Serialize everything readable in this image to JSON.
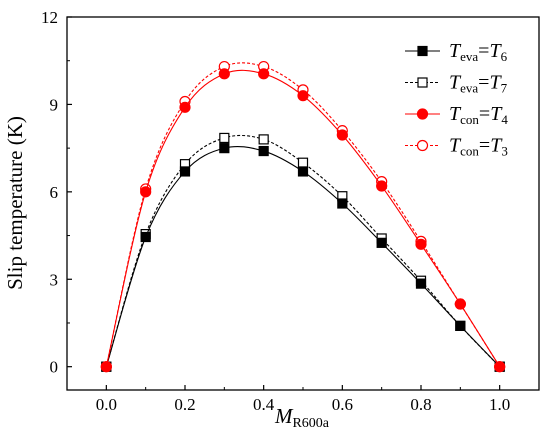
{
  "chart_data": {
    "type": "line",
    "title": "",
    "xlabel": {
      "main": "M",
      "sub": "R600a"
    },
    "ylabel": "Slip temperature (K)",
    "xlim": [
      -0.1,
      1.1
    ],
    "ylim": [
      -0.8,
      12
    ],
    "xticks": [
      0.0,
      0.2,
      0.4,
      0.6,
      0.8,
      1.0
    ],
    "xtick_labels": [
      "0.0",
      "0.2",
      "0.4",
      "0.6",
      "0.8",
      "1.0"
    ],
    "yticks": [
      0,
      3,
      6,
      9,
      12
    ],
    "ytick_labels": [
      "0",
      "3",
      "6",
      "9",
      "12"
    ],
    "grid": false,
    "legend_position": "top-right",
    "x": [
      0.0,
      0.1,
      0.2,
      0.3,
      0.4,
      0.5,
      0.6,
      0.7,
      0.8,
      0.9,
      1.0
    ],
    "series": [
      {
        "legend": {
          "var1": "T",
          "sub1": "eva",
          "var2": "T",
          "sub2": "6"
        },
        "color": "#000000",
        "marker": "square-filled",
        "line": "solid",
        "values": [
          0,
          4.45,
          6.7,
          7.5,
          7.4,
          6.7,
          5.6,
          4.25,
          2.85,
          1.4,
          0
        ]
      },
      {
        "legend": {
          "var1": "T",
          "sub1": "eva",
          "var2": "T",
          "sub2": "7"
        },
        "color": "#000000",
        "marker": "square-open",
        "line": "dashed",
        "values": [
          0,
          4.55,
          6.95,
          7.85,
          7.8,
          7.0,
          5.85,
          4.4,
          2.95,
          1.4,
          0
        ]
      },
      {
        "legend": {
          "var1": "T",
          "sub1": "con",
          "var2": "T",
          "sub2": "4"
        },
        "color": "#ff0000",
        "marker": "circle-filled",
        "line": "solid",
        "values": [
          0,
          6.0,
          8.9,
          10.05,
          10.05,
          9.3,
          7.95,
          6.2,
          4.2,
          2.15,
          0
        ]
      },
      {
        "legend": {
          "var1": "T",
          "sub1": "con",
          "var2": "T",
          "sub2": "3"
        },
        "color": "#ff0000",
        "marker": "circle-open",
        "line": "dashed",
        "values": [
          0,
          6.1,
          9.1,
          10.3,
          10.3,
          9.5,
          8.1,
          6.35,
          4.3,
          2.15,
          0
        ]
      }
    ]
  }
}
